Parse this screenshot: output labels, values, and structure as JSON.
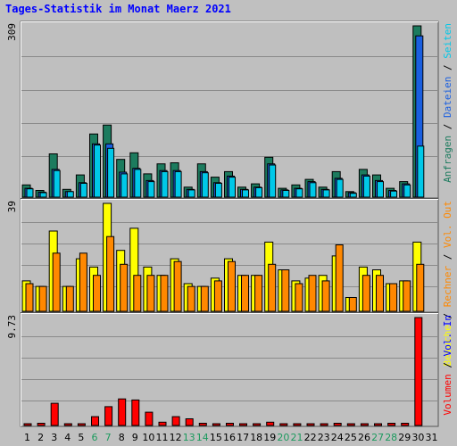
{
  "title": "Tages-Statistik im Monat Maerz 2021",
  "colors": {
    "background": "#c0c0c0",
    "panel": "#bfbfbf",
    "grid": "#8a8a8a",
    "title": "#0000ff",
    "anfragen": "#1c7b5e",
    "dateien": "#1a5fe0",
    "seiten": "#00c8e8",
    "besuche": "#ffff00",
    "rechner": "#ff8800",
    "vol_out": "#ff8800",
    "vol_in": "#0000ff",
    "volumen": "#ff0000",
    "weekend": "#1c9a5e",
    "weekday": "#000000"
  },
  "chart_data": [
    {
      "type": "bar",
      "panel": "top",
      "y_max_label": "309",
      "ylim": [
        0,
        309
      ],
      "legend": [
        "Anfragen",
        "Dateien",
        "Seiten"
      ],
      "legend_colors": [
        "#1c7b5e",
        "#1a5fe0",
        "#00c8e8"
      ],
      "series": [
        {
          "name": "Anfragen",
          "values": [
            22,
            12,
            78,
            14,
            40,
            114,
            130,
            68,
            80,
            42,
            60,
            62,
            18,
            60,
            36,
            46,
            18,
            24,
            72,
            16,
            22,
            32,
            18,
            46,
            10,
            50,
            40,
            16,
            28,
            309,
            0
          ]
        },
        {
          "name": "Dateien",
          "values": [
            16,
            9,
            50,
            10,
            26,
            96,
            96,
            45,
            52,
            30,
            48,
            48,
            14,
            46,
            26,
            38,
            14,
            18,
            60,
            13,
            16,
            28,
            14,
            34,
            8,
            40,
            30,
            12,
            24,
            291,
            0
          ]
        },
        {
          "name": "Seiten",
          "values": [
            15,
            8,
            48,
            10,
            25,
            94,
            88,
            42,
            50,
            28,
            46,
            46,
            13,
            44,
            25,
            36,
            13,
            17,
            58,
            12,
            15,
            26,
            13,
            32,
            7,
            38,
            28,
            11,
            22,
            92,
            0
          ]
        }
      ],
      "series_order_note": ""
    },
    {
      "type": "bar",
      "panel": "middle",
      "y_max_label": "39",
      "ylim": [
        0,
        39
      ],
      "legend": [
        "Besuche",
        "Rechner"
      ],
      "legend_colors": [
        "#ffff00",
        "#ff8800"
      ],
      "series": [
        {
          "name": "Besuche",
          "values": [
            11,
            9,
            29,
            9,
            19,
            16,
            39,
            22,
            30,
            16,
            13,
            19,
            10,
            9,
            12,
            19,
            13,
            13,
            25,
            15,
            11,
            12,
            13,
            20,
            5,
            16,
            15,
            10,
            11,
            25,
            0
          ]
        },
        {
          "name": "Rechner",
          "values": [
            10,
            9,
            21,
            9,
            21,
            13,
            27,
            17,
            13,
            13,
            13,
            18,
            9,
            9,
            11,
            18,
            13,
            13,
            17,
            15,
            10,
            13,
            11,
            24,
            5,
            13,
            13,
            10,
            11,
            17,
            0
          ]
        }
      ]
    },
    {
      "type": "bar",
      "panel": "bottom",
      "y_max_label": "9.73",
      "ylim": [
        0,
        9.73
      ],
      "legend": [
        "Volumen",
        "Vol. In",
        "Vol. Out",
        "Rechner"
      ],
      "legend_colors": [
        "#ff0000",
        "#0000ff",
        "#ff8800",
        "#ff8800"
      ],
      "series": [
        {
          "name": "Volumen",
          "values": [
            0.1,
            0.2,
            2.0,
            0.1,
            0.1,
            0.8,
            1.7,
            2.4,
            2.3,
            1.2,
            0.3,
            0.8,
            0.6,
            0.2,
            0.1,
            0.2,
            0.1,
            0.1,
            0.3,
            0.1,
            0.1,
            0.1,
            0.1,
            0.2,
            0.1,
            0.1,
            0.1,
            0.2,
            0.2,
            9.73,
            0
          ]
        }
      ]
    }
  ],
  "x_labels": [
    "1",
    "2",
    "3",
    "4",
    "5",
    "6",
    "7",
    "8",
    "9",
    "10",
    "11",
    "12",
    "13",
    "14",
    "15",
    "16",
    "17",
    "18",
    "19",
    "20",
    "21",
    "22",
    "23",
    "24",
    "25",
    "26",
    "27",
    "28",
    "29",
    "30",
    "31"
  ],
  "weekend_days": [
    "6",
    "7",
    "13",
    "14",
    "20",
    "21",
    "27",
    "28"
  ],
  "legends_text": {
    "top": [
      "Anfragen",
      " / ",
      "Dateien",
      " / ",
      "Seiten"
    ],
    "middle": [
      "Besuche",
      " / ",
      "Rechner",
      " / ",
      "Vol. Out"
    ],
    "bottom": [
      "Volumen",
      " / ",
      "Vol. In"
    ]
  }
}
